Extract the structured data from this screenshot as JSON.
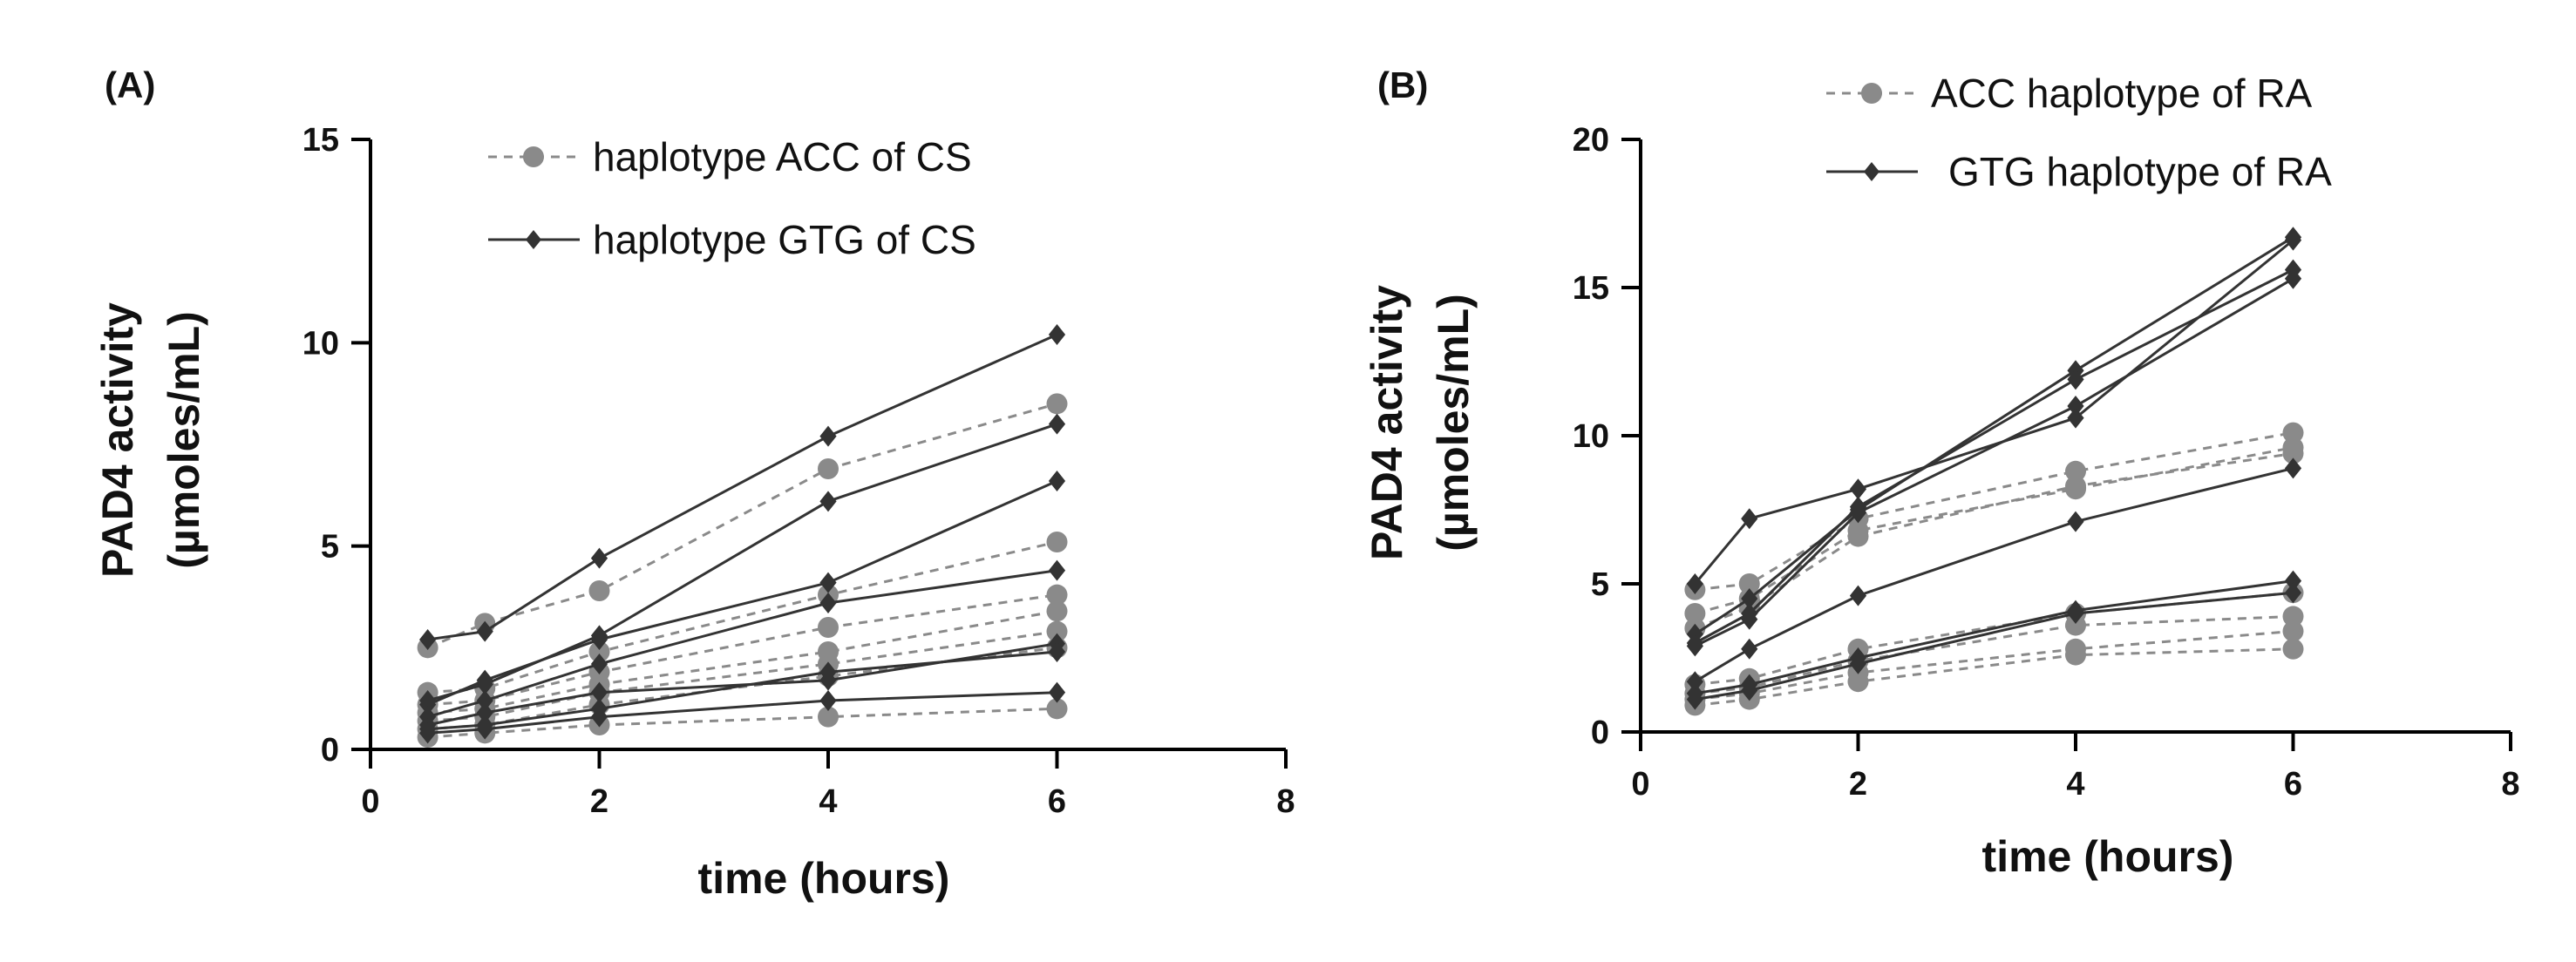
{
  "colors": {
    "acc": "#8a8a8a",
    "gtg": "#333333",
    "axis": "#000000",
    "text": "#111111"
  },
  "chart_data": [
    {
      "panel": "(A)",
      "type": "line",
      "xlabel": "time (hours)",
      "ylabel_line1": "PAD4 activity",
      "ylabel_line2": "(µmoles/mL)",
      "xlim": [
        0,
        8
      ],
      "ylim": [
        0,
        15
      ],
      "xticks": [
        0,
        2,
        4,
        6,
        8
      ],
      "yticks": [
        0,
        5,
        10,
        15
      ],
      "x": [
        0.5,
        1,
        2,
        4,
        6
      ],
      "legend": [
        {
          "label": "haplotype ACC of CS",
          "group": "acc"
        },
        {
          "label": "haplotype GTG of CS",
          "group": "gtg"
        }
      ],
      "series": [
        {
          "name": "haplotype ACC of CS",
          "group": "acc",
          "values": [
            2.5,
            3.1,
            3.9,
            6.9,
            8.5
          ]
        },
        {
          "name": "haplotype ACC of CS",
          "group": "acc",
          "values": [
            1.4,
            1.5,
            2.4,
            3.8,
            5.1
          ]
        },
        {
          "name": "haplotype ACC of CS",
          "group": "acc",
          "values": [
            1.1,
            1.2,
            1.9,
            3.0,
            3.8
          ]
        },
        {
          "name": "haplotype ACC of CS",
          "group": "acc",
          "values": [
            0.9,
            1.0,
            1.6,
            2.4,
            3.4
          ]
        },
        {
          "name": "haplotype ACC of CS",
          "group": "acc",
          "values": [
            0.7,
            0.8,
            1.4,
            2.1,
            2.9
          ]
        },
        {
          "name": "haplotype ACC of CS",
          "group": "acc",
          "values": [
            0.5,
            0.6,
            1.1,
            1.8,
            2.5
          ]
        },
        {
          "name": "haplotype ACC of CS",
          "group": "acc",
          "values": [
            0.3,
            0.4,
            0.6,
            0.8,
            1.0
          ]
        },
        {
          "name": "haplotype GTG of CS",
          "group": "gtg",
          "values": [
            2.7,
            2.9,
            4.7,
            7.7,
            10.2
          ]
        },
        {
          "name": "haplotype GTG of CS",
          "group": "gtg",
          "values": [
            1.2,
            1.6,
            2.8,
            6.1,
            8.0
          ]
        },
        {
          "name": "haplotype GTG of CS",
          "group": "gtg",
          "values": [
            1.1,
            1.7,
            2.7,
            4.1,
            6.6
          ]
        },
        {
          "name": "haplotype GTG of CS",
          "group": "gtg",
          "values": [
            0.8,
            1.2,
            2.1,
            3.6,
            4.4
          ]
        },
        {
          "name": "haplotype GTG of CS",
          "group": "gtg",
          "values": [
            0.6,
            0.9,
            1.4,
            1.7,
            2.6
          ]
        },
        {
          "name": "haplotype GTG of CS",
          "group": "gtg",
          "values": [
            0.5,
            0.6,
            1.0,
            1.9,
            2.4
          ]
        },
        {
          "name": "haplotype GTG of CS",
          "group": "gtg",
          "values": [
            0.4,
            0.5,
            0.8,
            1.2,
            1.4
          ]
        }
      ]
    },
    {
      "panel": "(B)",
      "type": "line",
      "xlabel": "time (hours)",
      "ylabel_line1": "PAD4 activity",
      "ylabel_line2": "(µmoles/mL)",
      "xlim": [
        0,
        8
      ],
      "ylim": [
        0,
        20
      ],
      "xticks": [
        0,
        2,
        4,
        6,
        8
      ],
      "yticks": [
        0,
        5,
        10,
        15,
        20
      ],
      "x": [
        0.5,
        1,
        2,
        4,
        6
      ],
      "legend": [
        {
          "label": "ACC haplotype of RA",
          "group": "acc"
        },
        {
          "label": "GTG haplotype of RA",
          "group": "gtg"
        }
      ],
      "series": [
        {
          "name": "ACC haplotype of RA",
          "group": "acc",
          "values": [
            4.8,
            5.0,
            7.2,
            8.8,
            10.1
          ]
        },
        {
          "name": "ACC haplotype of RA",
          "group": "acc",
          "values": [
            4.0,
            4.5,
            6.8,
            8.2,
            9.6
          ]
        },
        {
          "name": "ACC haplotype of RA",
          "group": "acc",
          "values": [
            3.5,
            4.2,
            6.6,
            8.3,
            9.4
          ]
        },
        {
          "name": "ACC haplotype of RA",
          "group": "acc",
          "values": [
            1.6,
            1.8,
            2.8,
            4.0,
            4.7
          ]
        },
        {
          "name": "ACC haplotype of RA",
          "group": "acc",
          "values": [
            1.3,
            1.5,
            2.4,
            3.6,
            3.9
          ]
        },
        {
          "name": "ACC haplotype of RA",
          "group": "acc",
          "values": [
            1.1,
            1.3,
            2.0,
            2.8,
            3.4
          ]
        },
        {
          "name": "ACC haplotype of RA",
          "group": "acc",
          "values": [
            0.9,
            1.1,
            1.7,
            2.6,
            2.8
          ]
        },
        {
          "name": "GTG haplotype of RA",
          "group": "gtg",
          "values": [
            3.3,
            4.5,
            7.5,
            12.2,
            16.7
          ]
        },
        {
          "name": "GTG haplotype of RA",
          "group": "gtg",
          "values": [
            3.0,
            4.0,
            7.6,
            11.9,
            15.6
          ]
        },
        {
          "name": "GTG haplotype of RA",
          "group": "gtg",
          "values": [
            2.9,
            3.8,
            7.4,
            11.0,
            15.3
          ]
        },
        {
          "name": "GTG haplotype of RA",
          "group": "gtg",
          "values": [
            5.0,
            7.2,
            8.2,
            10.6,
            16.6
          ]
        },
        {
          "name": "GTG haplotype of RA",
          "group": "gtg",
          "values": [
            1.7,
            2.8,
            4.6,
            7.1,
            8.9
          ]
        },
        {
          "name": "GTG haplotype of RA",
          "group": "gtg",
          "values": [
            1.3,
            1.6,
            2.5,
            4.1,
            5.1
          ]
        },
        {
          "name": "GTG haplotype of RA",
          "group": "gtg",
          "values": [
            1.1,
            1.4,
            2.3,
            4.0,
            4.7
          ]
        }
      ]
    }
  ]
}
